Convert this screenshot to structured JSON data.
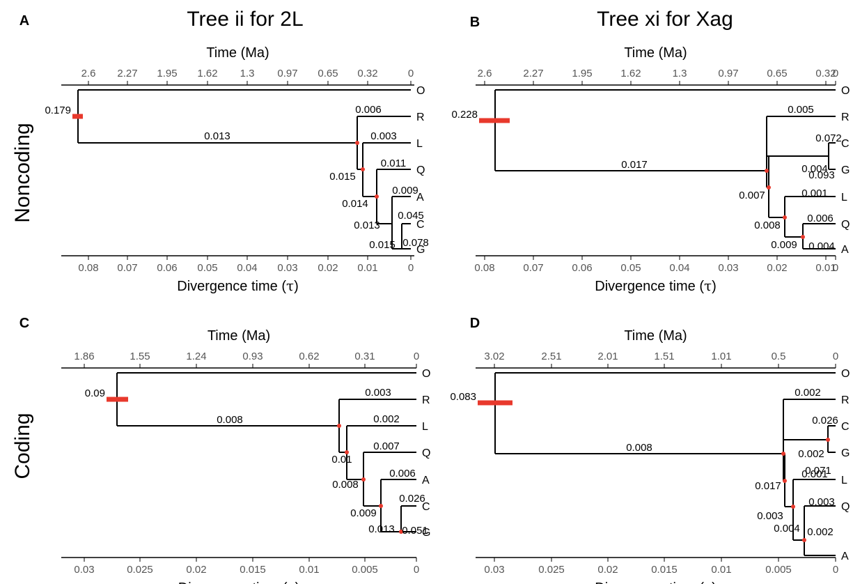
{
  "titles": {
    "col_left": "Tree ii for 2L",
    "col_right": "Tree xi for Xag",
    "row_top": "Noncoding",
    "row_bottom": "Coding"
  },
  "colors": {
    "branch": "#000000",
    "node_bar": "#e8392c",
    "tick_text": "#555555"
  },
  "panels": [
    {
      "letter": "A",
      "top_axis_title": "Time (Ma)",
      "bottom_axis_title": "Divergence time (τ)",
      "top_ticks": [
        "2.6",
        "2.27",
        "1.95",
        "1.62",
        "1.3",
        "0.97",
        "0.65",
        "0.32",
        "0"
      ],
      "bottom_ticks": [
        "0.08",
        "0.07",
        "0.06",
        "0.05",
        "0.04",
        "0.03",
        "0.02",
        "0.01",
        "0"
      ],
      "tips": [
        "O",
        "R",
        "L",
        "Q",
        "A",
        "C",
        "G"
      ],
      "root_label": "0.179",
      "edge_labels": [
        "0.013",
        "0.006",
        "0.003",
        "0.015",
        "0.011",
        "0.014",
        "0.009",
        "0.013",
        "0.045",
        "0.015",
        "0.078"
      ]
    },
    {
      "letter": "B",
      "top_axis_title": "Time (Ma)",
      "bottom_axis_title": "Divergence time (τ)",
      "top_ticks": [
        "2.6",
        "2.27",
        "1.95",
        "1.62",
        "1.3",
        "0.97",
        "0.65",
        "0.32",
        "0"
      ],
      "bottom_ticks": [
        "0.08",
        "0.07",
        "0.06",
        "0.05",
        "0.04",
        "0.03",
        "0.02",
        "0.01",
        "0"
      ],
      "tips": [
        "O",
        "R",
        "C",
        "G",
        "L",
        "Q",
        "A"
      ],
      "root_label": "0.228",
      "edge_labels": [
        "0.017",
        "0.005",
        "0.004",
        "0.072",
        "0.093",
        "0.007",
        "0.001",
        "0.008",
        "0.006",
        "0.009",
        "0.004"
      ]
    },
    {
      "letter": "C",
      "top_axis_title": "Time (Ma)",
      "bottom_axis_title": "Divergence time (τ)",
      "top_ticks": [
        "1.86",
        "1.55",
        "1.24",
        "0.93",
        "0.62",
        "0.31",
        "0"
      ],
      "bottom_ticks": [
        "0.03",
        "0.025",
        "0.02",
        "0.015",
        "0.01",
        "0.005",
        "0"
      ],
      "tips": [
        "O",
        "R",
        "L",
        "Q",
        "A",
        "C",
        "G"
      ],
      "root_label": "0.09",
      "edge_labels": [
        "0.008",
        "0.003",
        "0.002",
        "0.01",
        "0.007",
        "0.008",
        "0.006",
        "0.009",
        "0.026",
        "0.013",
        "0.051"
      ]
    },
    {
      "letter": "D",
      "top_axis_title": "Time (Ma)",
      "bottom_axis_title": "Divergence time (τ)",
      "top_ticks": [
        "3.02",
        "2.51",
        "2.01",
        "1.51",
        "1.01",
        "0.5",
        "0"
      ],
      "bottom_ticks": [
        "0.03",
        "0.025",
        "0.02",
        "0.015",
        "0.01",
        "0.005",
        "0"
      ],
      "tips": [
        "O",
        "R",
        "C",
        "G",
        "L",
        "Q",
        "A"
      ],
      "root_label": "0.083",
      "edge_labels": [
        "0.008",
        "0.002",
        "0.002",
        "0.026",
        "0.071",
        "0.017",
        "0.001",
        "0.003",
        "0.003",
        "0.004",
        "0.002"
      ]
    }
  ]
}
